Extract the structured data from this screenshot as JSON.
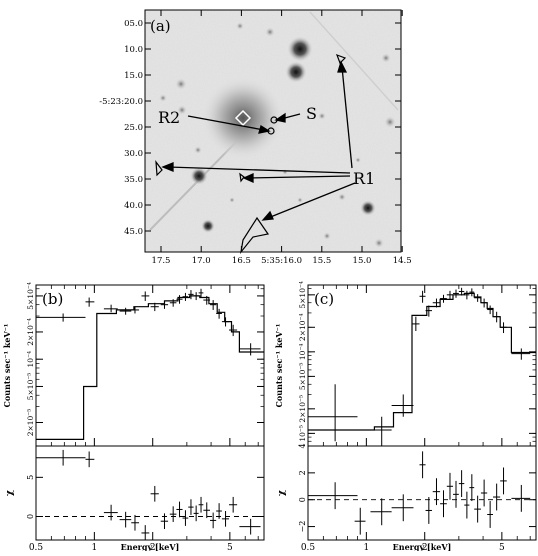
{
  "image_panel": {
    "label": "(a)",
    "dec_ticks": [
      "05.0",
      "10.0",
      "15.0",
      "-5:23:20.0",
      "25.0",
      "30.0",
      "35.0",
      "40.0",
      "45.0"
    ],
    "ra_ticks": [
      "17.5",
      "17.0",
      "16.5",
      "5:35:16.0",
      "15.5",
      "15.0",
      "14.5"
    ],
    "labels": {
      "r2": "R2",
      "s": "S",
      "r1": "R1"
    }
  },
  "chart_data": [
    {
      "type": "scatter",
      "panel": "(b)",
      "xlabel": "Energy [keV]",
      "ylabel": "Counts sec⁻¹ keV⁻¹",
      "ylabel_residual": "χ",
      "x_scale": "log",
      "y_scale": "log",
      "xlim": [
        0.5,
        7.5
      ],
      "x_ticks": [
        "0.5",
        "1",
        "2",
        "5"
      ],
      "y_ticks": [
        "2×10⁻⁵",
        "5×10⁻⁵",
        "10⁻⁴",
        "2×10⁻⁴",
        "5×10⁻⁴"
      ],
      "residual_ticks": [
        "0",
        "5"
      ],
      "residual_ylim": [
        -3,
        9
      ],
      "data": [
        {
          "x": 0.69,
          "xlo": 0.5,
          "xhi": 0.9,
          "y": 0.00029,
          "ylo": 0.00026,
          "yhi": 0.00032
        },
        {
          "x": 0.94,
          "xlo": 0.9,
          "xhi": 1.0,
          "y": 0.00043,
          "ylo": 0.00038,
          "yhi": 0.00048
        },
        {
          "x": 1.22,
          "xlo": 1.12,
          "xhi": 1.32,
          "y": 0.00036,
          "ylo": 0.00033,
          "yhi": 0.0004
        },
        {
          "x": 1.45,
          "xlo": 1.35,
          "xhi": 1.55,
          "y": 0.00034,
          "ylo": 0.00031,
          "yhi": 0.00037
        },
        {
          "x": 1.62,
          "xlo": 1.55,
          "xhi": 1.7,
          "y": 0.00035,
          "ylo": 0.00032,
          "yhi": 0.00038
        },
        {
          "x": 1.83,
          "xlo": 1.75,
          "xhi": 1.92,
          "y": 0.0005,
          "ylo": 0.00044,
          "yhi": 0.00056
        },
        {
          "x": 2.05,
          "xlo": 1.95,
          "xhi": 2.15,
          "y": 0.00038,
          "ylo": 0.00034,
          "yhi": 0.00042
        },
        {
          "x": 2.3,
          "xlo": 2.2,
          "xhi": 2.4,
          "y": 0.0004,
          "ylo": 0.00036,
          "yhi": 0.00044
        },
        {
          "x": 2.55,
          "xlo": 2.45,
          "xhi": 2.65,
          "y": 0.00042,
          "ylo": 0.00038,
          "yhi": 0.00046
        },
        {
          "x": 2.75,
          "xlo": 2.65,
          "xhi": 2.85,
          "y": 0.00046,
          "ylo": 0.00041,
          "yhi": 0.00051
        },
        {
          "x": 2.95,
          "xlo": 2.85,
          "xhi": 3.05,
          "y": 0.00049,
          "ylo": 0.00044,
          "yhi": 0.00054
        },
        {
          "x": 3.15,
          "xlo": 3.05,
          "xhi": 3.25,
          "y": 0.00052,
          "ylo": 0.00046,
          "yhi": 0.00058
        },
        {
          "x": 3.35,
          "xlo": 3.25,
          "xhi": 3.45,
          "y": 0.0005,
          "ylo": 0.00045,
          "yhi": 0.00055
        },
        {
          "x": 3.55,
          "xlo": 3.45,
          "xhi": 3.65,
          "y": 0.00054,
          "ylo": 0.00048,
          "yhi": 0.0006
        },
        {
          "x": 3.8,
          "xlo": 3.65,
          "xhi": 3.95,
          "y": 0.00045,
          "ylo": 0.0004,
          "yhi": 0.0005
        },
        {
          "x": 4.1,
          "xlo": 3.95,
          "xhi": 4.25,
          "y": 0.0004,
          "ylo": 0.00035,
          "yhi": 0.00045
        },
        {
          "x": 4.4,
          "xlo": 4.25,
          "xhi": 4.55,
          "y": 0.00032,
          "ylo": 0.00028,
          "yhi": 0.00036
        },
        {
          "x": 4.75,
          "xlo": 4.55,
          "xhi": 4.95,
          "y": 0.00026,
          "ylo": 0.00023,
          "yhi": 0.00029
        },
        {
          "x": 5.2,
          "xlo": 4.95,
          "xhi": 5.45,
          "y": 0.00021,
          "ylo": 0.00018,
          "yhi": 0.00024
        },
        {
          "x": 6.4,
          "xlo": 5.6,
          "xhi": 7.2,
          "y": 0.00013,
          "ylo": 0.00011,
          "yhi": 0.00015
        }
      ],
      "model": [
        {
          "x": 0.5,
          "y": 1.3e-05
        },
        {
          "x": 0.88,
          "y": 1.3e-05
        },
        {
          "x": 0.88,
          "y": 5e-05
        },
        {
          "x": 1.03,
          "y": 5e-05
        },
        {
          "x": 1.03,
          "y": 0.00032
        },
        {
          "x": 1.3,
          "y": 0.00032
        },
        {
          "x": 1.3,
          "y": 0.00035
        },
        {
          "x": 1.6,
          "y": 0.00035
        },
        {
          "x": 1.6,
          "y": 0.00038
        },
        {
          "x": 1.9,
          "y": 0.00038
        },
        {
          "x": 1.9,
          "y": 0.00041
        },
        {
          "x": 2.3,
          "y": 0.00041
        },
        {
          "x": 2.3,
          "y": 0.00044
        },
        {
          "x": 2.7,
          "y": 0.00044
        },
        {
          "x": 2.7,
          "y": 0.00048
        },
        {
          "x": 3.1,
          "y": 0.00048
        },
        {
          "x": 3.1,
          "y": 0.0005
        },
        {
          "x": 3.5,
          "y": 0.0005
        },
        {
          "x": 3.5,
          "y": 0.00048
        },
        {
          "x": 3.9,
          "y": 0.00048
        },
        {
          "x": 3.9,
          "y": 0.00041
        },
        {
          "x": 4.3,
          "y": 0.00041
        },
        {
          "x": 4.3,
          "y": 0.00033
        },
        {
          "x": 4.7,
          "y": 0.00033
        },
        {
          "x": 4.7,
          "y": 0.00026
        },
        {
          "x": 5.1,
          "y": 0.00026
        },
        {
          "x": 5.1,
          "y": 0.0002
        },
        {
          "x": 5.6,
          "y": 0.0002
        },
        {
          "x": 5.6,
          "y": 0.00012
        },
        {
          "x": 7.5,
          "y": 0.00012
        }
      ],
      "residuals": [
        {
          "x": 0.69,
          "xlo": 0.5,
          "xhi": 0.9,
          "y": 7.5,
          "ylo": 6.5,
          "yhi": 8.5
        },
        {
          "x": 0.94,
          "xlo": 0.9,
          "xhi": 1.0,
          "y": 7.3,
          "ylo": 6.3,
          "yhi": 8.3
        },
        {
          "x": 1.22,
          "xlo": 1.12,
          "xhi": 1.32,
          "y": 0.5,
          "ylo": -0.5,
          "yhi": 1.5
        },
        {
          "x": 1.45,
          "xlo": 1.35,
          "xhi": 1.55,
          "y": -0.4,
          "ylo": -1.4,
          "yhi": 0.6
        },
        {
          "x": 1.62,
          "xlo": 1.55,
          "xhi": 1.7,
          "y": -0.8,
          "ylo": -1.8,
          "yhi": 0.2
        },
        {
          "x": 1.83,
          "xlo": 1.75,
          "xhi": 1.92,
          "y": -2.1,
          "ylo": -3.1,
          "yhi": -1.1
        },
        {
          "x": 2.05,
          "xlo": 1.95,
          "xhi": 2.15,
          "y": 2.9,
          "ylo": 1.9,
          "yhi": 3.9
        },
        {
          "x": 2.3,
          "xlo": 2.2,
          "xhi": 2.4,
          "y": -0.6,
          "ylo": -1.6,
          "yhi": 0.4
        },
        {
          "x": 2.55,
          "xlo": 2.45,
          "xhi": 2.65,
          "y": 0.3,
          "ylo": -0.7,
          "yhi": 1.3
        },
        {
          "x": 2.75,
          "xlo": 2.65,
          "xhi": 2.85,
          "y": 0.9,
          "ylo": -0.1,
          "yhi": 1.9
        },
        {
          "x": 2.95,
          "xlo": 2.85,
          "xhi": 3.05,
          "y": -0.2,
          "ylo": -1.2,
          "yhi": 0.8
        },
        {
          "x": 3.15,
          "xlo": 3.05,
          "xhi": 3.25,
          "y": 1.2,
          "ylo": 0.2,
          "yhi": 2.2
        },
        {
          "x": 3.35,
          "xlo": 3.25,
          "xhi": 3.45,
          "y": 0.4,
          "ylo": -0.6,
          "yhi": 1.4
        },
        {
          "x": 3.55,
          "xlo": 3.45,
          "xhi": 3.65,
          "y": 1.5,
          "ylo": 0.5,
          "yhi": 2.5
        },
        {
          "x": 3.8,
          "xlo": 3.65,
          "xhi": 3.95,
          "y": 0.8,
          "ylo": -0.2,
          "yhi": 1.8
        },
        {
          "x": 4.1,
          "xlo": 3.95,
          "xhi": 4.25,
          "y": -0.5,
          "ylo": -1.5,
          "yhi": 0.5
        },
        {
          "x": 4.4,
          "xlo": 4.25,
          "xhi": 4.55,
          "y": 0.7,
          "ylo": -0.3,
          "yhi": 1.7
        },
        {
          "x": 4.75,
          "xlo": 4.55,
          "xhi": 4.95,
          "y": -0.3,
          "ylo": -1.3,
          "yhi": 0.7
        },
        {
          "x": 5.2,
          "xlo": 4.95,
          "xhi": 5.45,
          "y": 1.5,
          "ylo": 0.5,
          "yhi": 2.5
        },
        {
          "x": 6.4,
          "xlo": 5.6,
          "xhi": 7.2,
          "y": -1.3,
          "ylo": -2.3,
          "yhi": -0.3
        }
      ]
    },
    {
      "type": "scatter",
      "panel": "(c)",
      "xlabel": "Energy [keV]",
      "ylabel": "Counts sec⁻¹ keV⁻¹",
      "ylabel_residual": "χ",
      "x_scale": "log",
      "y_scale": "log",
      "xlim": [
        0.5,
        7.5
      ],
      "x_ticks": [
        "0.5",
        "1",
        "2",
        "5"
      ],
      "y_ticks": [
        "10⁻⁵",
        "2×10⁻⁵",
        "5×10⁻⁵",
        "10⁻⁴",
        "2×10⁻⁴",
        "5×10⁻⁴"
      ],
      "residual_ticks": [
        "−2",
        "0",
        "2",
        "4"
      ],
      "residual_ylim": [
        -3,
        4
      ],
      "data": [
        {
          "x": 0.69,
          "xlo": 0.5,
          "xhi": 0.9,
          "y": 1.6e-05,
          "ylo": 8e-06,
          "yhi": 4e-05
        },
        {
          "x": 1.2,
          "xlo": 1.05,
          "xhi": 1.35,
          "y": 1.1e-05,
          "ylo": 7e-06,
          "yhi": 1.6e-05
        },
        {
          "x": 1.55,
          "xlo": 1.35,
          "xhi": 1.75,
          "y": 2.2e-05,
          "ylo": 1.6e-05,
          "yhi": 3e-05
        },
        {
          "x": 1.8,
          "xlo": 1.72,
          "xhi": 1.88,
          "y": 0.00022,
          "ylo": 0.00018,
          "yhi": 0.00027
        },
        {
          "x": 1.95,
          "xlo": 1.88,
          "xhi": 2.02,
          "y": 0.00048,
          "ylo": 0.0004,
          "yhi": 0.00056
        },
        {
          "x": 2.1,
          "xlo": 2.02,
          "xhi": 2.18,
          "y": 0.00032,
          "ylo": 0.00027,
          "yhi": 0.00037
        },
        {
          "x": 2.3,
          "xlo": 2.2,
          "xhi": 2.4,
          "y": 0.0004,
          "ylo": 0.00035,
          "yhi": 0.00045
        },
        {
          "x": 2.5,
          "xlo": 2.4,
          "xhi": 2.6,
          "y": 0.00045,
          "ylo": 0.0004,
          "yhi": 0.0005
        },
        {
          "x": 2.7,
          "xlo": 2.6,
          "xhi": 2.8,
          "y": 0.0005,
          "ylo": 0.00044,
          "yhi": 0.00056
        },
        {
          "x": 2.9,
          "xlo": 2.8,
          "xhi": 3.0,
          "y": 0.00052,
          "ylo": 0.00046,
          "yhi": 0.00058
        },
        {
          "x": 3.1,
          "xlo": 3.0,
          "xhi": 3.2,
          "y": 0.00055,
          "ylo": 0.00049,
          "yhi": 0.00061
        },
        {
          "x": 3.3,
          "xlo": 3.2,
          "xhi": 3.4,
          "y": 0.0005,
          "ylo": 0.00044,
          "yhi": 0.00056
        },
        {
          "x": 3.5,
          "xlo": 3.4,
          "xhi": 3.6,
          "y": 0.00054,
          "ylo": 0.00048,
          "yhi": 0.0006
        },
        {
          "x": 3.75,
          "xlo": 3.6,
          "xhi": 3.9,
          "y": 0.00046,
          "ylo": 0.00041,
          "yhi": 0.00051
        },
        {
          "x": 4.05,
          "xlo": 3.9,
          "xhi": 4.2,
          "y": 0.0004,
          "ylo": 0.00035,
          "yhi": 0.00045
        },
        {
          "x": 4.35,
          "xlo": 4.2,
          "xhi": 4.5,
          "y": 0.00033,
          "ylo": 0.00029,
          "yhi": 0.00037
        },
        {
          "x": 4.7,
          "xlo": 4.5,
          "xhi": 4.9,
          "y": 0.00027,
          "ylo": 0.00023,
          "yhi": 0.00031
        },
        {
          "x": 5.1,
          "xlo": 4.9,
          "xhi": 5.3,
          "y": 0.0002,
          "ylo": 0.00017,
          "yhi": 0.00023
        },
        {
          "x": 6.3,
          "xlo": 5.6,
          "xhi": 7.0,
          "y": 9.5e-05,
          "ylo": 8e-05,
          "yhi": 0.00011
        }
      ],
      "model": [
        {
          "x": 0.5,
          "y": 1.1e-05
        },
        {
          "x": 1.1,
          "y": 1.1e-05
        },
        {
          "x": 1.1,
          "y": 1.2e-05
        },
        {
          "x": 1.38,
          "y": 1.2e-05
        },
        {
          "x": 1.38,
          "y": 1.8e-05
        },
        {
          "x": 1.72,
          "y": 1.8e-05
        },
        {
          "x": 1.72,
          "y": 0.00028
        },
        {
          "x": 2.05,
          "y": 0.00028
        },
        {
          "x": 2.05,
          "y": 0.00036
        },
        {
          "x": 2.4,
          "y": 0.00036
        },
        {
          "x": 2.4,
          "y": 0.00044
        },
        {
          "x": 2.8,
          "y": 0.00044
        },
        {
          "x": 2.8,
          "y": 0.0005
        },
        {
          "x": 3.2,
          "y": 0.0005
        },
        {
          "x": 3.2,
          "y": 0.00052
        },
        {
          "x": 3.6,
          "y": 0.00052
        },
        {
          "x": 3.6,
          "y": 0.00047
        },
        {
          "x": 3.9,
          "y": 0.00047
        },
        {
          "x": 3.9,
          "y": 0.0004
        },
        {
          "x": 4.2,
          "y": 0.0004
        },
        {
          "x": 4.2,
          "y": 0.00034
        },
        {
          "x": 4.5,
          "y": 0.00034
        },
        {
          "x": 4.5,
          "y": 0.00027
        },
        {
          "x": 4.9,
          "y": 0.00027
        },
        {
          "x": 4.9,
          "y": 0.0002
        },
        {
          "x": 5.6,
          "y": 0.0002
        },
        {
          "x": 5.6,
          "y": 9.8e-05
        },
        {
          "x": 7.5,
          "y": 9.8e-05
        }
      ],
      "residuals": [
        {
          "x": 0.69,
          "xlo": 0.5,
          "xhi": 0.9,
          "y": 0.3,
          "ylo": -0.7,
          "yhi": 1.3
        },
        {
          "x": 0.93,
          "xlo": 0.87,
          "xhi": 0.99,
          "y": -1.6,
          "ylo": -2.6,
          "yhi": -0.6
        },
        {
          "x": 1.2,
          "xlo": 1.05,
          "xhi": 1.35,
          "y": -0.9,
          "ylo": -1.9,
          "yhi": 0.1
        },
        {
          "x": 1.55,
          "xlo": 1.35,
          "xhi": 1.75,
          "y": -0.6,
          "ylo": -1.6,
          "yhi": 0.4
        },
        {
          "x": 1.95,
          "xlo": 1.88,
          "xhi": 2.02,
          "y": 2.6,
          "ylo": 1.6,
          "yhi": 3.6
        },
        {
          "x": 2.1,
          "xlo": 2.02,
          "xhi": 2.18,
          "y": -0.8,
          "ylo": -1.8,
          "yhi": 0.2
        },
        {
          "x": 2.3,
          "xlo": 2.2,
          "xhi": 2.4,
          "y": 0.6,
          "ylo": -0.4,
          "yhi": 1.6
        },
        {
          "x": 2.5,
          "xlo": 2.4,
          "xhi": 2.6,
          "y": -0.3,
          "ylo": -1.3,
          "yhi": 0.7
        },
        {
          "x": 2.7,
          "xlo": 2.6,
          "xhi": 2.8,
          "y": 1.0,
          "ylo": 0.0,
          "yhi": 2.0
        },
        {
          "x": 2.9,
          "xlo": 2.8,
          "xhi": 3.0,
          "y": 0.4,
          "ylo": -0.6,
          "yhi": 1.4
        },
        {
          "x": 3.1,
          "xlo": 3.0,
          "xhi": 3.2,
          "y": 1.2,
          "ylo": 0.2,
          "yhi": 2.2
        },
        {
          "x": 3.3,
          "xlo": 3.2,
          "xhi": 3.4,
          "y": -0.4,
          "ylo": -1.4,
          "yhi": 0.6
        },
        {
          "x": 3.5,
          "xlo": 3.4,
          "xhi": 3.6,
          "y": 0.9,
          "ylo": -0.1,
          "yhi": 1.9
        },
        {
          "x": 3.75,
          "xlo": 3.6,
          "xhi": 3.9,
          "y": -0.7,
          "ylo": -1.7,
          "yhi": 0.3
        },
        {
          "x": 4.05,
          "xlo": 3.9,
          "xhi": 4.2,
          "y": 0.5,
          "ylo": -0.5,
          "yhi": 1.5
        },
        {
          "x": 4.35,
          "xlo": 4.2,
          "xhi": 4.5,
          "y": -1.1,
          "ylo": -2.1,
          "yhi": -0.1
        },
        {
          "x": 4.7,
          "xlo": 4.5,
          "xhi": 4.9,
          "y": 0.2,
          "ylo": -0.8,
          "yhi": 1.2
        },
        {
          "x": 5.1,
          "xlo": 4.9,
          "xhi": 5.3,
          "y": 1.4,
          "ylo": 0.4,
          "yhi": 2.4
        },
        {
          "x": 6.3,
          "xlo": 5.6,
          "xhi": 7.0,
          "y": 0.1,
          "ylo": -0.9,
          "yhi": 1.1
        }
      ]
    }
  ]
}
